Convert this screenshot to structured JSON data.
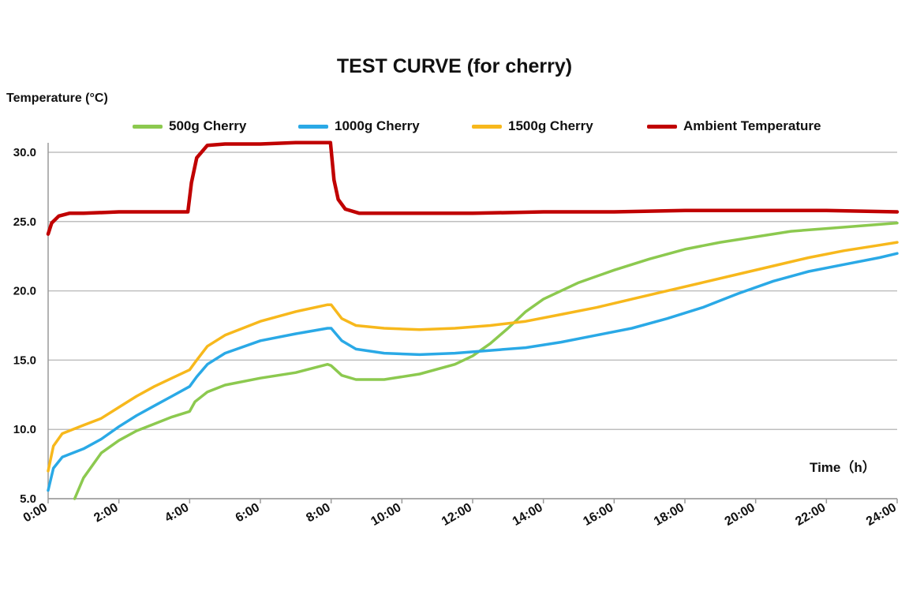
{
  "chart_data": {
    "type": "line",
    "title": "TEST CURVE (for cherry)",
    "ylabel": "Temperature (°C)",
    "xlabel": "Time（h）",
    "xlim": [
      0,
      24
    ],
    "ylim": [
      5,
      30
    ],
    "yticks": [
      "5.0",
      "10.0",
      "15.0",
      "20.0",
      "25.0",
      "30.0"
    ],
    "ytick_values": [
      5,
      10,
      15,
      20,
      25,
      30
    ],
    "xticks": [
      "0:00",
      "2:00",
      "4:00",
      "6:00",
      "8:00",
      "10:00",
      "12:00",
      "14:00",
      "16:00",
      "18:00",
      "20:00",
      "22:00",
      "24:00"
    ],
    "grid": "horizontal",
    "legend_position": "top",
    "series": [
      {
        "name": "500g Cherry",
        "color": "#8cc94f",
        "points": [
          [
            0.75,
            5.0
          ],
          [
            1.0,
            6.5
          ],
          [
            1.5,
            8.3
          ],
          [
            2.0,
            9.2
          ],
          [
            2.5,
            9.9
          ],
          [
            3.0,
            10.4
          ],
          [
            3.5,
            10.9
          ],
          [
            4.0,
            11.3
          ],
          [
            4.15,
            12.0
          ],
          [
            4.5,
            12.7
          ],
          [
            5.0,
            13.2
          ],
          [
            6.0,
            13.7
          ],
          [
            7.0,
            14.1
          ],
          [
            7.9,
            14.7
          ],
          [
            8.0,
            14.6
          ],
          [
            8.3,
            13.9
          ],
          [
            8.7,
            13.6
          ],
          [
            9.5,
            13.6
          ],
          [
            10.5,
            14.0
          ],
          [
            11.5,
            14.7
          ],
          [
            12.0,
            15.3
          ],
          [
            12.5,
            16.2
          ],
          [
            13.0,
            17.3
          ],
          [
            13.5,
            18.5
          ],
          [
            14.0,
            19.4
          ],
          [
            15.0,
            20.6
          ],
          [
            16.0,
            21.5
          ],
          [
            17.0,
            22.3
          ],
          [
            18.0,
            23.0
          ],
          [
            19.0,
            23.5
          ],
          [
            20.0,
            23.9
          ],
          [
            21.0,
            24.3
          ],
          [
            22.0,
            24.5
          ],
          [
            23.0,
            24.7
          ],
          [
            24.0,
            24.9
          ]
        ]
      },
      {
        "name": "1000g Cherry",
        "color": "#2aa9e6",
        "points": [
          [
            0.0,
            5.6
          ],
          [
            0.15,
            7.2
          ],
          [
            0.4,
            8.0
          ],
          [
            1.0,
            8.6
          ],
          [
            1.5,
            9.3
          ],
          [
            2.0,
            10.2
          ],
          [
            2.5,
            11.0
          ],
          [
            3.0,
            11.7
          ],
          [
            3.5,
            12.4
          ],
          [
            4.0,
            13.1
          ],
          [
            4.2,
            13.8
          ],
          [
            4.5,
            14.7
          ],
          [
            5.0,
            15.5
          ],
          [
            6.0,
            16.4
          ],
          [
            7.0,
            16.9
          ],
          [
            7.9,
            17.3
          ],
          [
            8.0,
            17.3
          ],
          [
            8.3,
            16.4
          ],
          [
            8.7,
            15.8
          ],
          [
            9.5,
            15.5
          ],
          [
            10.5,
            15.4
          ],
          [
            11.5,
            15.5
          ],
          [
            12.5,
            15.7
          ],
          [
            13.5,
            15.9
          ],
          [
            14.5,
            16.3
          ],
          [
            15.5,
            16.8
          ],
          [
            16.5,
            17.3
          ],
          [
            17.5,
            18.0
          ],
          [
            18.5,
            18.8
          ],
          [
            19.5,
            19.8
          ],
          [
            20.5,
            20.7
          ],
          [
            21.5,
            21.4
          ],
          [
            22.5,
            21.9
          ],
          [
            23.5,
            22.4
          ],
          [
            24.0,
            22.7
          ]
        ]
      },
      {
        "name": "1500g Cherry",
        "color": "#f7b81c",
        "points": [
          [
            0.0,
            7.0
          ],
          [
            0.15,
            8.8
          ],
          [
            0.4,
            9.7
          ],
          [
            1.0,
            10.3
          ],
          [
            1.5,
            10.8
          ],
          [
            2.0,
            11.6
          ],
          [
            2.5,
            12.4
          ],
          [
            3.0,
            13.1
          ],
          [
            3.5,
            13.7
          ],
          [
            4.0,
            14.3
          ],
          [
            4.2,
            15.0
          ],
          [
            4.5,
            16.0
          ],
          [
            5.0,
            16.8
          ],
          [
            6.0,
            17.8
          ],
          [
            7.0,
            18.5
          ],
          [
            7.9,
            19.0
          ],
          [
            8.0,
            19.0
          ],
          [
            8.3,
            18.0
          ],
          [
            8.7,
            17.5
          ],
          [
            9.5,
            17.3
          ],
          [
            10.5,
            17.2
          ],
          [
            11.5,
            17.3
          ],
          [
            12.5,
            17.5
          ],
          [
            13.5,
            17.8
          ],
          [
            14.5,
            18.3
          ],
          [
            15.5,
            18.8
          ],
          [
            16.5,
            19.4
          ],
          [
            17.5,
            20.0
          ],
          [
            18.5,
            20.6
          ],
          [
            19.5,
            21.2
          ],
          [
            20.5,
            21.8
          ],
          [
            21.5,
            22.4
          ],
          [
            22.5,
            22.9
          ],
          [
            23.5,
            23.3
          ],
          [
            24.0,
            23.5
          ]
        ]
      },
      {
        "name": "Ambient Temperature",
        "color": "#c00000",
        "points": [
          [
            0.0,
            24.1
          ],
          [
            0.1,
            24.9
          ],
          [
            0.3,
            25.4
          ],
          [
            0.6,
            25.6
          ],
          [
            1.0,
            25.6
          ],
          [
            2.0,
            25.7
          ],
          [
            3.0,
            25.7
          ],
          [
            3.95,
            25.7
          ],
          [
            4.05,
            27.8
          ],
          [
            4.2,
            29.6
          ],
          [
            4.5,
            30.5
          ],
          [
            5.0,
            30.6
          ],
          [
            6.0,
            30.6
          ],
          [
            7.0,
            30.7
          ],
          [
            7.98,
            30.7
          ],
          [
            8.08,
            28.0
          ],
          [
            8.2,
            26.6
          ],
          [
            8.4,
            25.9
          ],
          [
            8.8,
            25.6
          ],
          [
            10.0,
            25.6
          ],
          [
            12.0,
            25.6
          ],
          [
            14.0,
            25.7
          ],
          [
            16.0,
            25.7
          ],
          [
            18.0,
            25.8
          ],
          [
            20.0,
            25.8
          ],
          [
            22.0,
            25.8
          ],
          [
            24.0,
            25.7
          ]
        ]
      }
    ]
  }
}
